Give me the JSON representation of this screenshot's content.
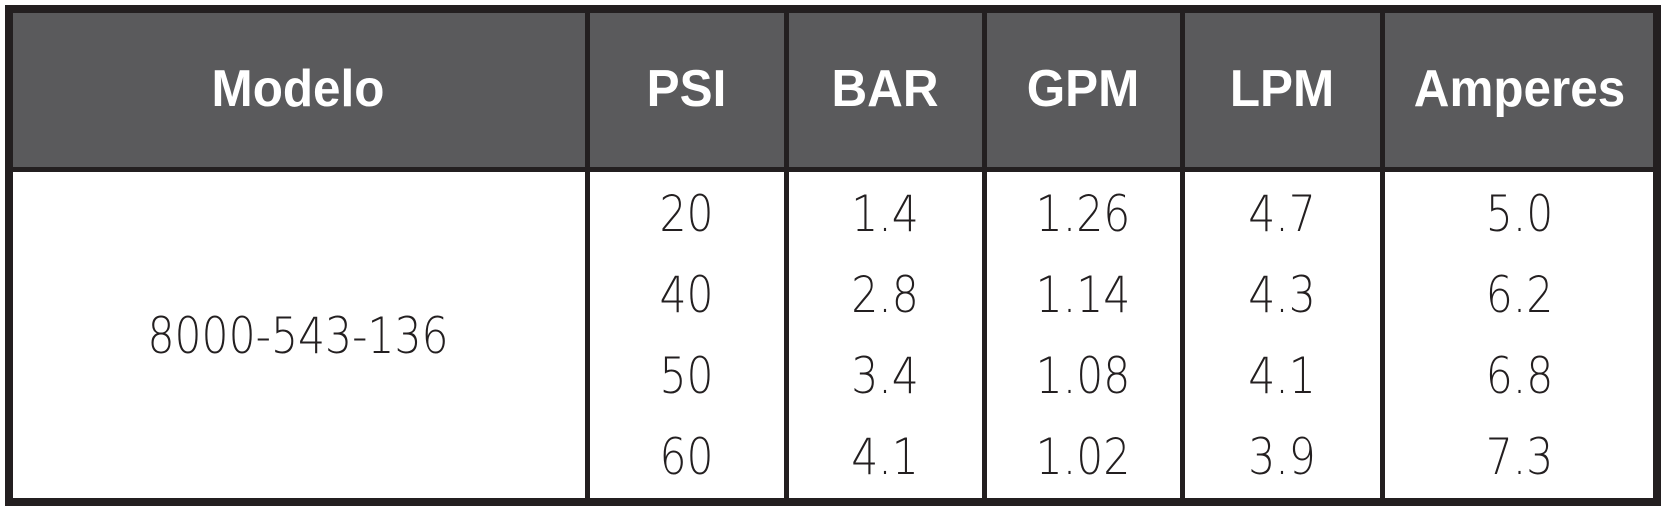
{
  "table": {
    "header": [
      "Modelo",
      "PSI",
      "BAR",
      "GPM",
      "LPM",
      "Amperes"
    ],
    "model": "8000-543-136",
    "rows": [
      [
        "20",
        "1.4",
        "1.26",
        "4.7",
        "5.0"
      ],
      [
        "40",
        "2.8",
        "1.14",
        "4.3",
        "6.2"
      ],
      [
        "50",
        "3.4",
        "1.08",
        "4.1",
        "6.8"
      ],
      [
        "60",
        "4.1",
        "1.02",
        "3.9",
        "7.3"
      ]
    ]
  }
}
